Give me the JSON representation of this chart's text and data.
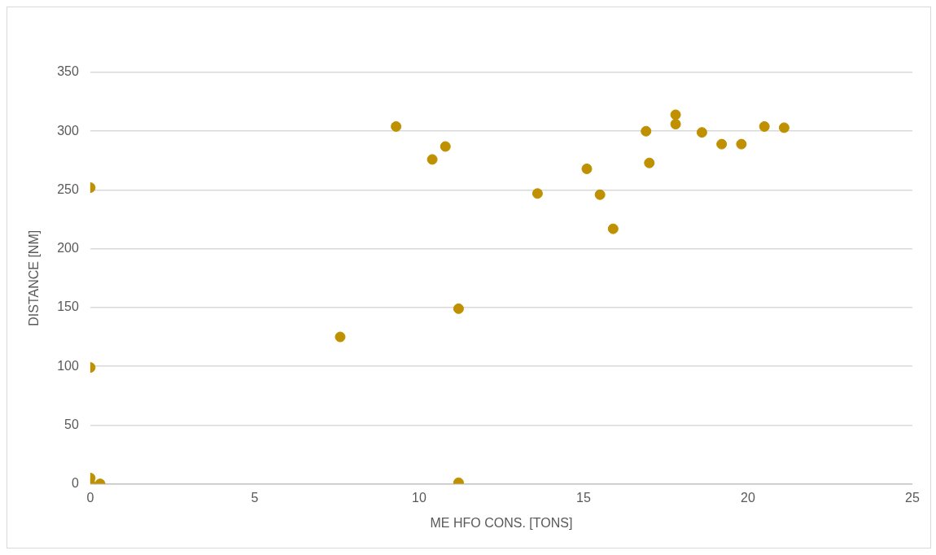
{
  "chart_data": {
    "type": "scatter",
    "xlabel": "ME HFO CONS. [TONS]",
    "ylabel": "DISTANCE [NM]",
    "x": [
      0,
      0,
      0,
      0,
      0.3,
      7.6,
      9.3,
      10.4,
      10.8,
      11.2,
      11.2,
      13.6,
      15.1,
      15.5,
      15.9,
      16.9,
      17.0,
      17.8,
      17.8,
      18.6,
      19.2,
      19.8,
      20.5,
      21.1
    ],
    "series": [
      {
        "color": "#bf9000",
        "values": [
          252,
          99,
          5,
          0,
          0,
          125,
          304,
          276,
          287,
          149,
          1,
          247,
          268,
          246,
          217,
          300,
          273,
          314,
          306,
          299,
          289,
          289,
          304,
          303
        ]
      }
    ],
    "xlim": [
      0,
      25
    ],
    "xticks": [
      0,
      5,
      10,
      15,
      20,
      25
    ],
    "ylim": [
      0,
      350
    ],
    "yticks": [
      0,
      50,
      100,
      150,
      200,
      250,
      300,
      350
    ],
    "grid": "y",
    "legend": false,
    "marker": "circle"
  }
}
